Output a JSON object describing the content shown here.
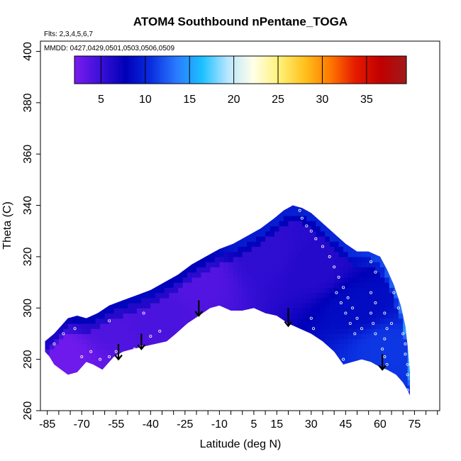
{
  "chart_data": {
    "type": "heatmap",
    "title": "ATOM4 Southbound nPentane_TOGA",
    "flights_note": "Flts: 2,3,4,5,6,7",
    "dates_note": "MMDD: 0427,0429,0501,0503,0506,0509",
    "xlabel": "Latitude (deg N)",
    "ylabel": "Theta (C)",
    "xlim": [
      -88,
      86
    ],
    "ylim": [
      260,
      404
    ],
    "x_tick_labels": [
      {
        "value": -85,
        "label": "-85"
      },
      {
        "value": -70,
        "label": "-70"
      },
      {
        "value": -55,
        "label": "-55"
      },
      {
        "value": -40,
        "label": "-40"
      },
      {
        "value": -25,
        "label": "-25"
      },
      {
        "value": -10,
        "label": "-10"
      },
      {
        "value": 5,
        "label": "5"
      },
      {
        "value": 15,
        "label": "15"
      },
      {
        "value": 30,
        "label": "30"
      },
      {
        "value": 45,
        "label": "45"
      },
      {
        "value": 60,
        "label": "60"
      },
      {
        "value": 75,
        "label": "75"
      }
    ],
    "y_ticks": [
      260,
      280,
      300,
      320,
      340,
      360,
      380,
      400
    ],
    "colorbar": {
      "range": [
        2,
        39.5
      ],
      "ticks": [
        5,
        10,
        15,
        20,
        25,
        30,
        35
      ],
      "colors": [
        "#7a1cf0",
        "#3c10d8",
        "#0000b8",
        "#0a2ee0",
        "#2a7bff",
        "#1cc0ff",
        "#b8e6ff",
        "#ffffe8",
        "#fff27a",
        "#ffc21e",
        "#ff7a00",
        "#e61a00",
        "#c00000",
        "#a01a1a"
      ]
    },
    "data_region": {
      "lower_boundary": [
        [
          -86,
          283
        ],
        [
          -84,
          281
        ],
        [
          -82,
          278
        ],
        [
          -79,
          276
        ],
        [
          -76,
          274
        ],
        [
          -72,
          275
        ],
        [
          -68,
          279
        ],
        [
          -65,
          278
        ],
        [
          -61,
          276
        ],
        [
          -56,
          281
        ],
        [
          -52,
          283
        ],
        [
          -48,
          284
        ],
        [
          -43,
          285
        ],
        [
          -38,
          286
        ],
        [
          -33,
          287
        ],
        [
          -29,
          290
        ],
        [
          -24,
          294
        ],
        [
          -19,
          297
        ],
        [
          -14,
          300
        ],
        [
          -10,
          301
        ],
        [
          -5,
          299
        ],
        [
          0,
          299
        ],
        [
          5,
          300
        ],
        [
          10,
          298
        ],
        [
          15,
          297
        ],
        [
          20,
          294
        ],
        [
          25,
          292
        ],
        [
          30,
          290
        ],
        [
          35,
          287
        ],
        [
          40,
          283
        ],
        [
          44,
          278
        ],
        [
          48,
          279
        ],
        [
          52,
          280
        ],
        [
          56,
          279
        ],
        [
          60,
          277
        ],
        [
          63,
          276
        ],
        [
          67,
          274
        ],
        [
          70,
          271
        ],
        [
          72,
          268
        ]
      ],
      "upper_boundary": [
        [
          -86,
          287
        ],
        [
          -82,
          290
        ],
        [
          -79,
          293
        ],
        [
          -76,
          296
        ],
        [
          -72,
          297
        ],
        [
          -68,
          296
        ],
        [
          -63,
          298
        ],
        [
          -58,
          301
        ],
        [
          -52,
          303
        ],
        [
          -46,
          305
        ],
        [
          -40,
          307
        ],
        [
          -34,
          310
        ],
        [
          -28,
          313
        ],
        [
          -22,
          317
        ],
        [
          -16,
          320
        ],
        [
          -10,
          323
        ],
        [
          -4,
          325
        ],
        [
          2,
          328
        ],
        [
          8,
          331
        ],
        [
          14,
          335
        ],
        [
          18,
          338
        ],
        [
          22,
          340
        ],
        [
          26,
          339
        ],
        [
          30,
          337
        ],
        [
          35,
          333
        ],
        [
          40,
          329
        ],
        [
          45,
          325
        ],
        [
          50,
          322
        ],
        [
          55,
          322
        ],
        [
          60,
          320
        ],
        [
          63,
          315
        ],
        [
          66,
          309
        ],
        [
          69,
          301
        ],
        [
          71,
          293
        ],
        [
          72,
          285
        ],
        [
          73,
          275
        ],
        [
          73,
          266
        ]
      ],
      "color_field": [
        {
          "lat": -80,
          "theta": 283,
          "value": 2.5
        },
        {
          "lat": -60,
          "theta": 295,
          "value": 4.0
        },
        {
          "lat": -40,
          "theta": 300,
          "value": 4.2
        },
        {
          "lat": -20,
          "theta": 312,
          "value": 3.8
        },
        {
          "lat": 10,
          "theta": 320,
          "value": 5.5
        },
        {
          "lat": 30,
          "theta": 315,
          "value": 6.0
        },
        {
          "lat": 50,
          "theta": 300,
          "value": 8.5
        },
        {
          "lat": 62,
          "theta": 285,
          "value": 11.0
        }
      ]
    },
    "observations": [
      {
        "lat": -82,
        "theta": 286
      },
      {
        "lat": -78,
        "theta": 290
      },
      {
        "lat": -73,
        "theta": 292
      },
      {
        "lat": -70,
        "theta": 281
      },
      {
        "lat": -66,
        "theta": 283
      },
      {
        "lat": -62,
        "theta": 280
      },
      {
        "lat": -58,
        "theta": 281
      },
      {
        "lat": -55,
        "theta": 283
      },
      {
        "lat": -50,
        "theta": 282
      },
      {
        "lat": -47,
        "theta": 284
      },
      {
        "lat": -44,
        "theta": 285
      },
      {
        "lat": -40,
        "theta": 289
      },
      {
        "lat": -36,
        "theta": 291
      },
      {
        "lat": -58,
        "theta": 295
      },
      {
        "lat": -43,
        "theta": 298
      },
      {
        "lat": 24,
        "theta": 341
      },
      {
        "lat": 25,
        "theta": 338
      },
      {
        "lat": 26,
        "theta": 335
      },
      {
        "lat": 28,
        "theta": 332
      },
      {
        "lat": 30,
        "theta": 330
      },
      {
        "lat": 32,
        "theta": 327
      },
      {
        "lat": 35,
        "theta": 324
      },
      {
        "lat": 38,
        "theta": 320
      },
      {
        "lat": 40,
        "theta": 316
      },
      {
        "lat": 42,
        "theta": 312
      },
      {
        "lat": 44,
        "theta": 308
      },
      {
        "lat": 46,
        "theta": 304
      },
      {
        "lat": 48,
        "theta": 300
      },
      {
        "lat": 50,
        "theta": 296
      },
      {
        "lat": 52,
        "theta": 292
      },
      {
        "lat": 41,
        "theta": 306
      },
      {
        "lat": 43,
        "theta": 302
      },
      {
        "lat": 45,
        "theta": 298
      },
      {
        "lat": 47,
        "theta": 294
      },
      {
        "lat": 49,
        "theta": 290
      },
      {
        "lat": 30,
        "theta": 296
      },
      {
        "lat": 31,
        "theta": 292
      },
      {
        "lat": 44,
        "theta": 280
      },
      {
        "lat": 56,
        "theta": 318
      },
      {
        "lat": 58,
        "theta": 314
      },
      {
        "lat": 56,
        "theta": 306
      },
      {
        "lat": 58,
        "theta": 302
      },
      {
        "lat": 56,
        "theta": 298
      },
      {
        "lat": 57,
        "theta": 294
      },
      {
        "lat": 58,
        "theta": 290
      },
      {
        "lat": 62,
        "theta": 298
      },
      {
        "lat": 63,
        "theta": 292
      },
      {
        "lat": 62,
        "theta": 288
      },
      {
        "lat": 61,
        "theta": 284
      },
      {
        "lat": 62,
        "theta": 281
      },
      {
        "lat": 63,
        "theta": 278
      },
      {
        "lat": 70,
        "theta": 290
      },
      {
        "lat": 71,
        "theta": 286
      },
      {
        "lat": 71,
        "theta": 282
      },
      {
        "lat": 72,
        "theta": 278
      },
      {
        "lat": 72,
        "theta": 274
      },
      {
        "lat": 72,
        "theta": 268
      },
      {
        "lat": 68,
        "theta": 300
      },
      {
        "lat": 66,
        "theta": 306
      },
      {
        "lat": 65,
        "theta": 294
      }
    ],
    "arrows": [
      {
        "lat": -54,
        "theta_top": 286,
        "theta_tip": 280
      },
      {
        "lat": -44,
        "theta_top": 290,
        "theta_tip": 284
      },
      {
        "lat": -19,
        "theta_top": 303,
        "theta_tip": 297
      },
      {
        "lat": 20,
        "theta_top": 300,
        "theta_tip": 293
      },
      {
        "lat": 61,
        "theta_top": 282,
        "theta_tip": 276
      }
    ]
  }
}
